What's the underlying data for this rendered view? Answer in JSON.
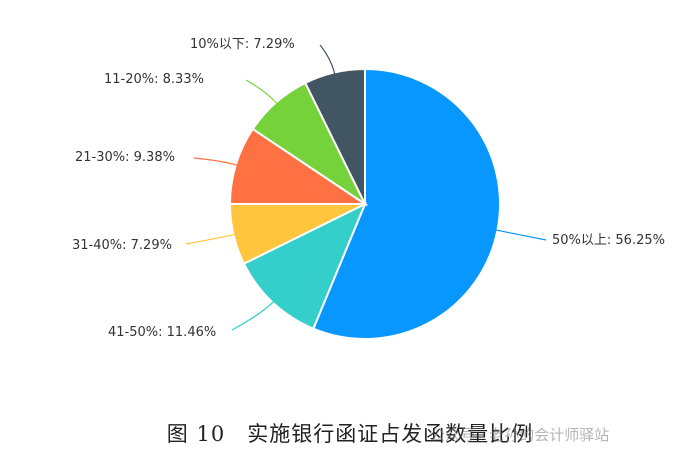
{
  "chart_data": {
    "type": "pie",
    "slices": [
      {
        "label": "50%以上",
        "value": 56.25,
        "color": "#0896FF"
      },
      {
        "label": "41-50%",
        "value": 11.46,
        "color": "#35CFCB"
      },
      {
        "label": "31-40%",
        "value": 7.29,
        "color": "#FFC53D"
      },
      {
        "label": "21-30%",
        "value": 9.38,
        "color": "#FF7043"
      },
      {
        "label": "11-20%",
        "value": 8.33,
        "color": "#75D23B"
      },
      {
        "label": "10%以下",
        "value": 7.29,
        "color": "#415563"
      }
    ],
    "label_texts": [
      "50%以上: 56.25%",
      "41-50%: 11.46%",
      "31-40%: 7.29%",
      "21-30%: 9.38%",
      "11-20%: 8.33%",
      "10%以下: 7.29%"
    ],
    "caption": "图 10　实施银行函证占发函数量比例"
  },
  "watermark": "公众号 · 老孙的会计师驿站"
}
